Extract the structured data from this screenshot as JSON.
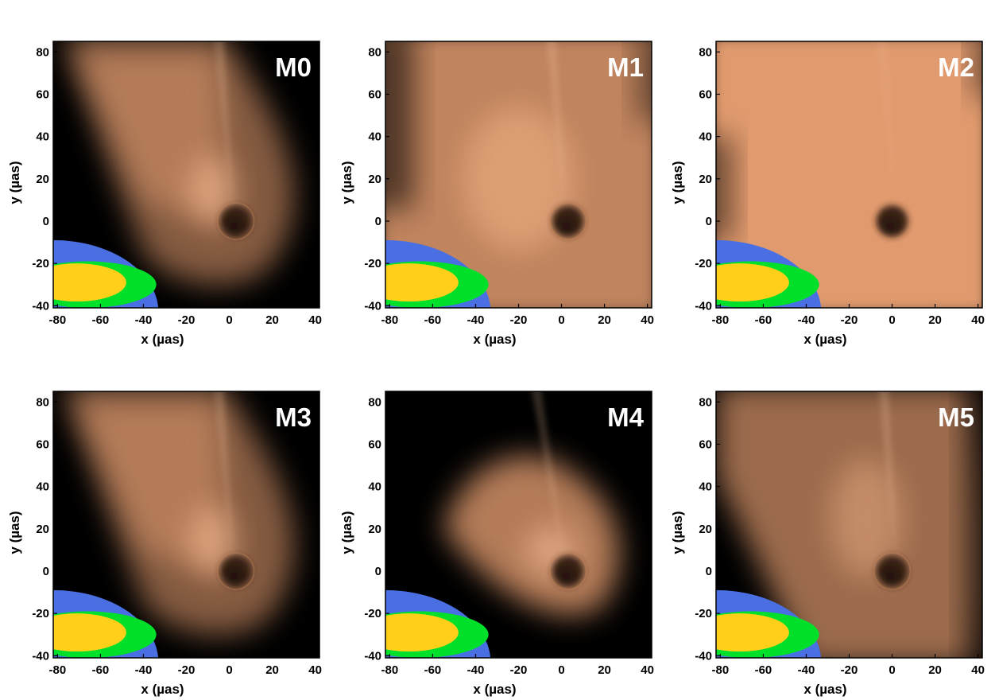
{
  "figure": {
    "x_axis_label": "x (µas)",
    "y_axis_label": "y (µas)",
    "x_ticks": [
      "-80",
      "-60",
      "-40",
      "-20",
      "0",
      "20",
      "40"
    ],
    "y_ticks": [
      "80",
      "60",
      "40",
      "20",
      "0",
      "-20",
      "-40"
    ],
    "panels": [
      {
        "label": "M0",
        "style": "narrow"
      },
      {
        "label": "M1",
        "style": "broad"
      },
      {
        "label": "M2",
        "style": "diffuse"
      },
      {
        "label": "M3",
        "style": "narrow"
      },
      {
        "label": "M4",
        "style": "compact"
      },
      {
        "label": "M5",
        "style": "wide"
      }
    ]
  },
  "axes": {
    "xlim": [
      -82,
      42
    ],
    "ylim": [
      -41,
      85
    ]
  },
  "colors": {
    "background": "#000000",
    "emission": "#f0a576",
    "beam_outer": "#4a6fe3",
    "beam_middle": "#00e02a",
    "beam_inner": "#ffcf1a",
    "label": "#ffffff"
  }
}
